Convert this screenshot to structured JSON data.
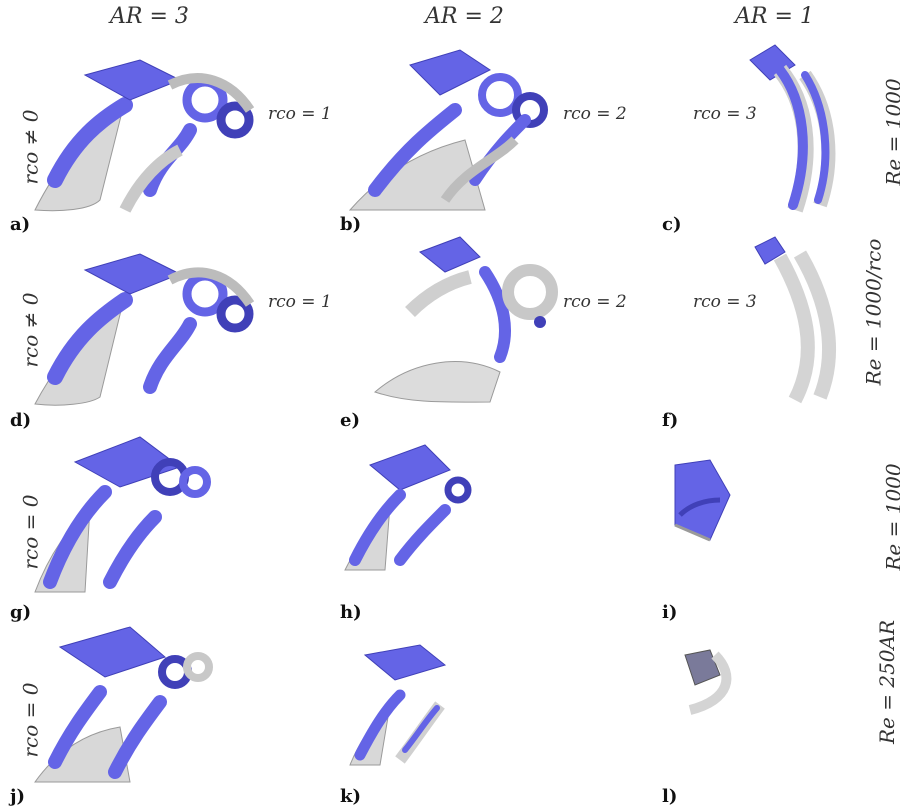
{
  "columns": [
    "AR = 3",
    "AR = 2",
    "AR = 1"
  ],
  "left_labels": [
    "rco ≠ 0",
    "rco ≠ 0",
    "rco = 0",
    "rco = 0"
  ],
  "right_labels": [
    "Re = 1000",
    "Re = 1000/rco",
    "Re = 1000",
    "Re = 250AR"
  ],
  "panel_labels": [
    "a)",
    "b)",
    "c)",
    "d)",
    "e)",
    "f)",
    "g)",
    "h)",
    "i)",
    "j)",
    "k)",
    "l)"
  ],
  "rco_tags": [
    "rco = 1",
    "rco = 2",
    "rco = 3",
    "rco = 1",
    "rco = 2",
    "rco = 3"
  ],
  "colors": {
    "vortex": "#6464e6",
    "vortex_dark": "#4040b8",
    "sheet": "#d8d8d8",
    "sheet_edge": "#9a9a9a"
  }
}
